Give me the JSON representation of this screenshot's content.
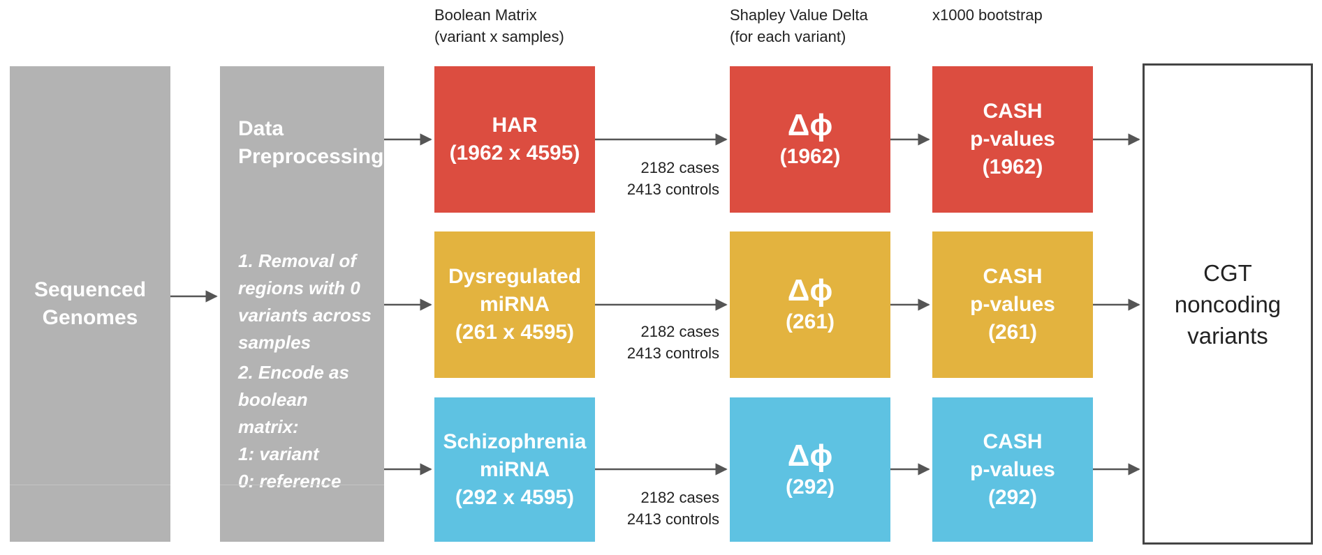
{
  "headers": {
    "matrix_line1": "Boolean Matrix",
    "matrix_line2": "(variant x samples)",
    "shapley_line1": "Shapley Value Delta",
    "shapley_line2": "(for each variant)",
    "bootstrap": "x1000 bootstrap"
  },
  "input": {
    "line1": "Sequenced",
    "line2": "Genomes"
  },
  "preprocessing": {
    "title_line1": "Data",
    "title_line2": "Preprocessing",
    "step1": [
      "1. Removal of",
      "regions with 0",
      "variants across",
      "samples"
    ],
    "step2": [
      "2. Encode as",
      "boolean",
      "matrix:",
      "1: variant",
      "0: reference"
    ]
  },
  "rows": [
    {
      "matrix": [
        "HAR",
        "(1962 x 4595)"
      ],
      "cases": "2182 cases",
      "controls": "2413 controls",
      "delta_symbol": "Δϕ",
      "delta_count": "(1962)",
      "cash": [
        "CASH",
        "p-values",
        "(1962)"
      ]
    },
    {
      "matrix": [
        "Dysregulated",
        "miRNA",
        "(261 x 4595)"
      ],
      "cases": "2182 cases",
      "controls": "2413 controls",
      "delta_symbol": "Δϕ",
      "delta_count": "(261)",
      "cash": [
        "CASH",
        "p-values",
        "(261)"
      ]
    },
    {
      "matrix": [
        "Schizophrenia",
        "miRNA",
        "(292 x 4595)"
      ],
      "cases": "2182 cases",
      "controls": "2413 controls",
      "delta_symbol": "Δϕ",
      "delta_count": "(292)",
      "cash": [
        "CASH",
        "p-values",
        "(292)"
      ]
    }
  ],
  "output": [
    "CGT",
    "noncoding",
    "variants"
  ],
  "colors": {
    "gray": "#b3b3b3",
    "red": "#dc4d40",
    "yellow": "#e3b33f",
    "blue": "#5ec2e2",
    "arrow": "#555555"
  }
}
